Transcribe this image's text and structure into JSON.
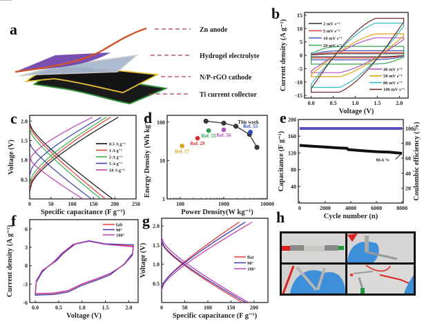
{
  "figure": {
    "panel_labels": [
      "a",
      "b",
      "c",
      "d",
      "e",
      "f",
      "g",
      "h"
    ]
  },
  "panel_a": {
    "type": "schematic",
    "layers": [
      {
        "label": "Zn anode",
        "color": "#d2532a"
      },
      {
        "label": "Hydrogel electrolyte",
        "color": "#a9b9cf"
      },
      {
        "label": "N/P-rGO cathode",
        "color": "#e9c43a"
      },
      {
        "label": "Ti current collector",
        "color": "#2e8b35"
      }
    ],
    "leader_color": "#b0384a"
  },
  "panel_h": {
    "type": "photo-grid",
    "photos": [
      "flat device connected to clips",
      "device bent ~90° held in gloved hand",
      "device folded held in gloved hands",
      "device powering red LED"
    ]
  },
  "chart_data": [
    {
      "panel": "b",
      "type": "line",
      "title": "",
      "xlabel": "Voltage (V)",
      "ylabel": "Current density (A g⁻¹)",
      "xlim": [
        -0.15,
        2.2
      ],
      "ylim": [
        -16,
        16
      ],
      "xticks": [
        "0.0",
        "0.5",
        "1.0",
        "1.5",
        "2.0"
      ],
      "xtick_values": [
        0,
        0.5,
        1,
        1.5,
        2
      ],
      "yticks": [
        "15",
        "10",
        "5",
        "0",
        "-5",
        "-10",
        "-15"
      ],
      "ytick_values": [
        15,
        10,
        5,
        0,
        -5,
        -10,
        -15
      ],
      "legend_top_left": [
        "2 mV s⁻¹",
        "5 mV s⁻¹",
        "10 mV s⁻¹",
        "20 mV s⁻¹"
      ],
      "legend_bottom_right": [
        "40 mV s⁻¹",
        "50 mV s⁻¹",
        "80 mV s⁻¹",
        "100 mV s⁻¹"
      ],
      "series": [
        {
          "name": "2 mV s⁻¹",
          "color": "#2b2b2b",
          "peak": 0.6
        },
        {
          "name": "5 mV s⁻¹",
          "color": "#e23a3a",
          "peak": 1.1
        },
        {
          "name": "10 mV s⁻¹",
          "color": "#3a5fbf",
          "peak": 1.8
        },
        {
          "name": "20 mV s⁻¹",
          "color": "#35a852",
          "peak": 3.5
        },
        {
          "name": "40 mV s⁻¹",
          "color": "#b04fc0",
          "peak": 6.5
        },
        {
          "name": "50 mV s⁻¹",
          "color": "#e0a510",
          "peak": 8.0
        },
        {
          "name": "80 mV s⁻¹",
          "color": "#34b8c0",
          "peak": 12.0
        },
        {
          "name": "100 mV s⁻¹",
          "color": "#6b2a2a",
          "peak": 13.8
        }
      ]
    },
    {
      "panel": "c",
      "type": "line",
      "title": "",
      "xlabel": "Specific capacitance (F g⁻¹)",
      "ylabel": "Voltage (V)",
      "xlim": [
        0,
        250
      ],
      "ylim": [
        0,
        2.15
      ],
      "xticks": [
        "0",
        "50",
        "100",
        "150",
        "200",
        "250"
      ],
      "xtick_values": [
        0,
        50,
        100,
        150,
        200,
        250
      ],
      "yticks": [
        "0.5",
        "1.0",
        "1.5",
        "2.0"
      ],
      "ytick_values": [
        0.5,
        1.0,
        1.5,
        2.0
      ],
      "legend": [
        "0.5 A g⁻¹",
        "1 A g⁻¹",
        "2 A g⁻¹",
        "5 A g⁻¹",
        "10 A g⁻¹"
      ],
      "series": [
        {
          "name": "0.5 A g⁻¹",
          "color": "#111111",
          "charge_start_v": 0.2,
          "charge_end_cap": 208,
          "discharge_start_v": 1.95,
          "discharge_end_cap": 195
        },
        {
          "name": "1 A g⁻¹",
          "color": "#e23a3a",
          "charge_start_v": 0.25,
          "charge_end_cap": 190,
          "discharge_start_v": 1.9,
          "discharge_end_cap": 178
        },
        {
          "name": "2 A g⁻¹",
          "color": "#35b04a",
          "charge_start_v": 0.35,
          "charge_end_cap": 180,
          "discharge_start_v": 1.8,
          "discharge_end_cap": 167
        },
        {
          "name": "5 A g⁻¹",
          "color": "#3a3fa8",
          "charge_start_v": 0.6,
          "charge_end_cap": 168,
          "discharge_start_v": 1.45,
          "discharge_end_cap": 145
        },
        {
          "name": "10 A g⁻¹",
          "color": "#c040b0",
          "charge_start_v": 0.95,
          "charge_end_cap": 147,
          "discharge_start_v": 1.05,
          "discharge_end_cap": 125
        }
      ]
    },
    {
      "panel": "d",
      "type": "scatter",
      "title": "",
      "xlabel": "Power Density(W kg⁻¹)",
      "ylabel": "Energy Density (Wh kg⁻¹)",
      "xscale": "log",
      "yscale": "log",
      "xlim": [
        50,
        10000
      ],
      "ylim": [
        1,
        150
      ],
      "xticks": [
        "100",
        "1000",
        "10000"
      ],
      "xtick_values": [
        100,
        1000,
        10000
      ],
      "yticks": [
        "1",
        "10",
        "100"
      ],
      "ytick_values": [
        1,
        10,
        100
      ],
      "this_work": {
        "label": "This work",
        "color": "#3a3a3a",
        "x": [
          390,
          1000,
          1900,
          3900,
          5800
        ],
        "y": [
          106,
          94,
          78,
          48,
          22
        ]
      },
      "references": [
        {
          "label": "Ref. 57",
          "x": 110,
          "y": 24,
          "color": "#d6a020"
        },
        {
          "label": "Ref. 29",
          "x": 250,
          "y": 38,
          "color": "#e02a2a"
        },
        {
          "label": "Ref. 55",
          "x": 450,
          "y": 60,
          "color": "#2aa050"
        },
        {
          "label": "Ref. 56",
          "x": 1000,
          "y": 63,
          "color": "#b050c0"
        },
        {
          "label": "Ref. 55",
          "x": 4100,
          "y": 55,
          "color": "#2a48c0"
        }
      ]
    },
    {
      "panel": "e",
      "type": "line",
      "title": "",
      "xlabel": "Cycle number (n)",
      "ylabel": "Capacitance (F g⁻¹)",
      "ylabel_right": "Coulombic efficiency (%)",
      "xlim": [
        -100,
        8100
      ],
      "ylim": [
        0,
        200
      ],
      "ylim_right": [
        0,
        112
      ],
      "xticks": [
        "0",
        "2000",
        "4000",
        "6000",
        "8000"
      ],
      "xtick_values": [
        0,
        2000,
        4000,
        6000,
        8000
      ],
      "yticks": [
        "40",
        "80",
        "120",
        "160",
        "200"
      ],
      "ytick_values": [
        40,
        80,
        120,
        160,
        200
      ],
      "yticks_right": [
        "20",
        "40",
        "60",
        "80",
        "100"
      ],
      "ytick_values_right": [
        20,
        40,
        60,
        80,
        100
      ],
      "annotation": "86.6 %",
      "series": [
        {
          "name": "Capacitance",
          "axis": "left",
          "color": "#111111",
          "x": [
            0,
            1000,
            2000,
            3000,
            3700,
            3800,
            5000,
            6000,
            7000,
            8000
          ],
          "y": [
            138,
            136,
            134,
            132,
            131,
            128,
            125,
            123,
            122,
            119
          ]
        },
        {
          "name": "Coulombic efficiency",
          "axis": "right",
          "color": "#5a4fc0",
          "x": [
            0,
            8000
          ],
          "y": [
            100,
            100
          ]
        }
      ]
    },
    {
      "panel": "f",
      "type": "line",
      "title": "",
      "xlabel": "Voltage (V)",
      "ylabel": "Current density (A g⁻¹)",
      "xlim": [
        -0.12,
        2.2
      ],
      "ylim": [
        -6,
        7.5
      ],
      "xticks": [
        "0.0",
        "0.5",
        "1.0",
        "1.5",
        "2.0"
      ],
      "xtick_values": [
        0,
        0.5,
        1,
        1.5,
        2
      ],
      "yticks": [
        "6",
        "3",
        "0",
        "-3",
        "-6"
      ],
      "ytick_values": [
        6,
        3,
        0,
        -3,
        -6
      ],
      "legend": [
        "falt",
        "90°",
        "180°"
      ],
      "series": [
        {
          "name": "falt",
          "color": "#e53a3a"
        },
        {
          "name": "90°",
          "color": "#3a3aa8"
        },
        {
          "name": "180°",
          "color": "#c040b0"
        }
      ]
    },
    {
      "panel": "g",
      "type": "line",
      "title": "",
      "xlabel": "Specific capacitance (F g⁻¹)",
      "ylabel": "Voltage (V)",
      "xlim": [
        0,
        230
      ],
      "ylim": [
        0,
        2.2
      ],
      "xticks": [
        "0",
        "50",
        "100",
        "150",
        "200"
      ],
      "xtick_values": [
        0,
        50,
        100,
        150,
        200
      ],
      "yticks": [
        "0.5",
        "1.0",
        "1.5",
        "2.0"
      ],
      "ytick_values": [
        0.5,
        1.0,
        1.5,
        2.0
      ],
      "legend": [
        "flat",
        "90°",
        "180°"
      ],
      "series": [
        {
          "name": "flat",
          "color": "#e53a3a",
          "charge_end_cap": 168,
          "discharge_end_cap": 175
        },
        {
          "name": "90°",
          "color": "#3a3aa8",
          "charge_end_cap": 181,
          "discharge_end_cap": 182
        },
        {
          "name": "180°",
          "color": "#c040b0",
          "charge_end_cap": 196,
          "discharge_end_cap": 188
        }
      ]
    }
  ]
}
